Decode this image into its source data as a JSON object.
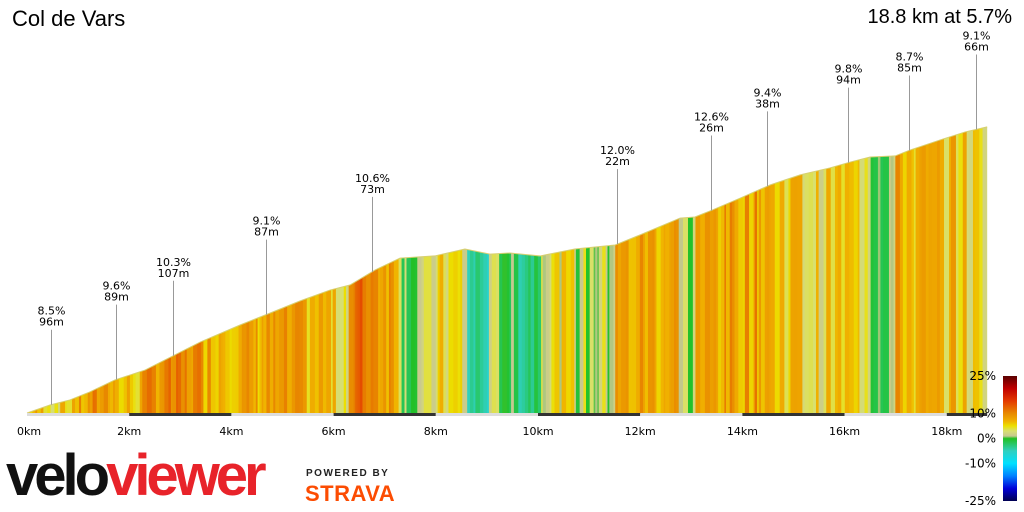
{
  "title": "Col de Vars",
  "summary": "18.8 km at 5.7%",
  "chart_data": {
    "type": "area",
    "xlabel": "",
    "ylabel": "",
    "x_unit": "km",
    "xlim": [
      0,
      18.8
    ],
    "x_ticks": [
      "0km",
      "2km",
      "4km",
      "6km",
      "8km",
      "10km",
      "12km",
      "14km",
      "16km",
      "18km"
    ],
    "profile_km": [
      0,
      0.45,
      0.84,
      1.23,
      1.72,
      2.31,
      2.7,
      3.39,
      4.17,
      4.76,
      5.34,
      5.93,
      6.32,
      6.81,
      7.3,
      7.98,
      8.57,
      9.06,
      9.45,
      10.04,
      10.72,
      11.51,
      12.0,
      12.78,
      13.07,
      13.41,
      13.96,
      14.54,
      15.13,
      15.71,
      16.11,
      16.5,
      16.99,
      17.28,
      17.87,
      18.36,
      18.79
    ],
    "profile_gain_m": [
      0,
      30,
      49,
      79,
      124,
      161,
      199,
      266,
      330,
      375,
      420,
      461,
      480,
      536,
      581,
      589,
      615,
      596,
      600,
      589,
      615,
      630,
      668,
      731,
      735,
      761,
      806,
      855,
      893,
      919,
      941,
      960,
      964,
      986,
      1024,
      1054,
      1073
    ],
    "annotations": [
      {
        "km": 0.47,
        "grade": "8.5%",
        "length": "96m"
      },
      {
        "km": 1.74,
        "grade": "9.6%",
        "length": "89m"
      },
      {
        "km": 2.86,
        "grade": "10.3%",
        "length": "107m"
      },
      {
        "km": 4.68,
        "grade": "9.1%",
        "length": "87m"
      },
      {
        "km": 6.75,
        "grade": "10.6%",
        "length": "73m"
      },
      {
        "km": 11.55,
        "grade": "12.0%",
        "length": "22m"
      },
      {
        "km": 13.39,
        "grade": "12.6%",
        "length": "26m"
      },
      {
        "km": 14.48,
        "grade": "9.4%",
        "length": "38m"
      },
      {
        "km": 16.07,
        "grade": "9.8%",
        "length": "94m"
      },
      {
        "km": 17.26,
        "grade": "8.7%",
        "length": "85m"
      },
      {
        "km": 18.57,
        "grade": "9.1%",
        "length": "66m"
      }
    ],
    "legend": {
      "labels": [
        "25%",
        "10%",
        "0%",
        "-10%",
        "-25%"
      ],
      "values": [
        25,
        10,
        0,
        -10,
        -25
      ],
      "colors": [
        [
          25,
          "#5a0000"
        ],
        [
          20,
          "#c00000"
        ],
        [
          15,
          "#e43a00"
        ],
        [
          10,
          "#e88a00"
        ],
        [
          7,
          "#f0b000"
        ],
        [
          5,
          "#ece000"
        ],
        [
          3,
          "#d8e070"
        ],
        [
          1,
          "#c8c890"
        ],
        [
          0,
          "#22c022"
        ],
        [
          -5,
          "#30d0c0"
        ],
        [
          -10,
          "#00e0ff"
        ],
        [
          -15,
          "#0080ff"
        ],
        [
          -20,
          "#0000d8"
        ],
        [
          -25,
          "#000050"
        ]
      ]
    }
  },
  "branding": {
    "logo_left": "velo",
    "logo_right": "viewer",
    "powered_by": "POWERED BY",
    "strava": "STRAVA"
  }
}
